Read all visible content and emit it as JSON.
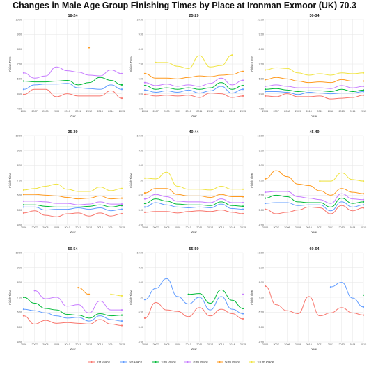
{
  "title": "Changes in Male Age Group Finishing Times by Place at Ironman Exmoor (UK) 70.3",
  "chart_data": {
    "type": "line",
    "x": [
      2006,
      2007,
      2008,
      2009,
      2010,
      2011,
      2012,
      2013,
      2014,
      2015
    ],
    "x_tick_labels": [
      "2006",
      "2007",
      "2008",
      "2009",
      "2010",
      "2011",
      "2012",
      "2013",
      "2014",
      "2015"
    ],
    "xlabel": "Year",
    "ylabel": "Finish Time",
    "ylim": [
      4,
      10
    ],
    "y_tick_labels": [
      "4:00",
      "5:00",
      "6:00",
      "7:00",
      "8:00",
      "9:00",
      "10:00"
    ],
    "grid": true,
    "legend_position": "bottom",
    "legend": [
      {
        "name": "1st Place",
        "color": "#f8766d"
      },
      {
        "name": "5th Place",
        "color": "#619cff"
      },
      {
        "name": "10th Place",
        "color": "#00ba38"
      },
      {
        "name": "20th Place",
        "color": "#c77cff"
      },
      {
        "name": "50th Place",
        "color": "#ff9a1f"
      },
      {
        "name": "100th Place",
        "color": "#f0e442"
      }
    ],
    "panels": [
      {
        "title": "18-24",
        "series": [
          {
            "name": "1st Place",
            "values": [
              4.95,
              5.3,
              5.3,
              4.8,
              5.0,
              4.85,
              4.85,
              4.85,
              5.2,
              4.7
            ]
          },
          {
            "name": "5th Place",
            "values": [
              5.3,
              5.6,
              5.65,
              5.65,
              5.7,
              5.4,
              5.35,
              5.3,
              5.6,
              5.3
            ]
          },
          {
            "name": "10th Place",
            "values": [
              5.85,
              5.8,
              5.8,
              5.85,
              5.9,
              5.6,
              5.75,
              6.1,
              5.9,
              5.6
            ]
          },
          {
            "name": "20th Place",
            "values": [
              6.4,
              6.05,
              6.2,
              6.8,
              6.55,
              6.45,
              6.25,
              6.2,
              6.6,
              6.35
            ]
          },
          {
            "name": "50th Place",
            "values": [
              null,
              null,
              null,
              null,
              null,
              null,
              8.1,
              null,
              null,
              null
            ]
          }
        ]
      },
      {
        "title": "25-29",
        "series": [
          {
            "name": "1st Place",
            "values": [
              4.95,
              4.85,
              4.9,
              4.85,
              4.9,
              4.75,
              5.05,
              5.0,
              4.75,
              4.85
            ]
          },
          {
            "name": "5th Place",
            "values": [
              5.25,
              5.1,
              5.2,
              5.1,
              5.25,
              5.05,
              5.2,
              5.5,
              5.05,
              5.3
            ]
          },
          {
            "name": "10th Place",
            "values": [
              5.55,
              5.3,
              5.4,
              5.3,
              5.4,
              5.3,
              5.4,
              5.75,
              5.3,
              5.55
            ]
          },
          {
            "name": "20th Place",
            "values": [
              5.75,
              5.55,
              5.65,
              5.5,
              5.6,
              5.5,
              5.7,
              6.05,
              5.6,
              5.9
            ]
          },
          {
            "name": "50th Place",
            "values": [
              6.35,
              6.05,
              6.05,
              6.0,
              6.1,
              6.2,
              6.15,
              6.25,
              6.3,
              6.5
            ]
          },
          {
            "name": "100th Place",
            "values": [
              null,
              7.1,
              7.1,
              6.85,
              6.7,
              7.55,
              6.8,
              6.9,
              7.6,
              null
            ]
          }
        ]
      },
      {
        "title": "30-34",
        "series": [
          {
            "name": "1st Place",
            "values": [
              4.85,
              4.8,
              5.0,
              4.8,
              4.8,
              4.85,
              4.65,
              4.7,
              4.75,
              4.9
            ]
          },
          {
            "name": "5th Place",
            "values": [
              5.15,
              5.15,
              5.1,
              4.95,
              5.1,
              5.05,
              5.0,
              5.05,
              5.05,
              5.15
            ]
          },
          {
            "name": "10th Place",
            "values": [
              5.3,
              5.35,
              5.25,
              5.15,
              5.2,
              5.2,
              5.15,
              5.3,
              5.15,
              5.25
            ]
          },
          {
            "name": "20th Place",
            "values": [
              5.5,
              5.6,
              5.5,
              5.4,
              5.4,
              5.4,
              5.35,
              5.55,
              5.4,
              5.5
            ]
          },
          {
            "name": "50th Place",
            "values": [
              5.95,
              6.1,
              6.0,
              5.85,
              5.75,
              5.8,
              5.75,
              5.95,
              5.85,
              5.85
            ]
          },
          {
            "name": "100th Place",
            "values": [
              6.6,
              6.75,
              6.7,
              6.4,
              6.25,
              6.35,
              6.25,
              6.4,
              6.35,
              6.4
            ]
          }
        ]
      },
      {
        "title": "35-39",
        "series": [
          {
            "name": "1st Place",
            "values": [
              4.8,
              4.95,
              4.65,
              4.55,
              4.75,
              4.8,
              4.6,
              4.8,
              4.6,
              4.75
            ]
          },
          {
            "name": "5th Place",
            "values": [
              5.2,
              5.2,
              5.0,
              5.05,
              5.05,
              5.15,
              5.05,
              5.15,
              4.95,
              5.05
            ]
          },
          {
            "name": "10th Place",
            "values": [
              5.35,
              5.35,
              5.25,
              5.2,
              5.2,
              5.2,
              5.25,
              5.35,
              5.2,
              5.3
            ]
          },
          {
            "name": "20th Place",
            "values": [
              5.6,
              5.6,
              5.55,
              5.45,
              5.45,
              5.35,
              5.4,
              5.55,
              5.4,
              5.4
            ]
          },
          {
            "name": "50th Place",
            "values": [
              6.05,
              6.05,
              6.0,
              5.95,
              5.85,
              5.75,
              5.8,
              5.95,
              5.75,
              5.8
            ]
          },
          {
            "name": "100th Place",
            "values": [
              6.35,
              6.45,
              6.6,
              6.75,
              6.4,
              6.25,
              6.25,
              6.55,
              6.3,
              6.45
            ]
          }
        ]
      },
      {
        "title": "40-44",
        "series": [
          {
            "name": "1st Place",
            "values": [
              4.85,
              4.9,
              4.9,
              4.8,
              4.9,
              4.95,
              4.9,
              5.0,
              4.85,
              4.75
            ]
          },
          {
            "name": "5th Place",
            "values": [
              5.2,
              5.5,
              5.35,
              5.2,
              5.15,
              5.2,
              5.15,
              5.4,
              5.1,
              5.05
            ]
          },
          {
            "name": "10th Place",
            "values": [
              5.45,
              5.75,
              5.6,
              5.4,
              5.35,
              5.35,
              5.3,
              5.55,
              5.3,
              5.25
            ]
          },
          {
            "name": "20th Place",
            "values": [
              5.75,
              6.05,
              5.9,
              5.6,
              5.55,
              5.55,
              5.5,
              5.75,
              5.5,
              5.5
            ]
          },
          {
            "name": "50th Place",
            "values": [
              6.15,
              6.45,
              6.45,
              6.05,
              5.95,
              5.95,
              5.85,
              6.05,
              5.9,
              5.9
            ]
          },
          {
            "name": "100th Place",
            "values": [
              7.15,
              7.1,
              7.55,
              6.6,
              6.4,
              6.4,
              6.35,
              6.6,
              6.4,
              6.4
            ]
          }
        ]
      },
      {
        "title": "45-49",
        "series": [
          {
            "name": "1st Place",
            "values": [
              5.05,
              4.75,
              4.85,
              5.0,
              5.2,
              5.15,
              4.75,
              5.3,
              4.95,
              5.15
            ]
          },
          {
            "name": "5th Place",
            "values": [
              5.45,
              5.5,
              5.5,
              5.3,
              5.35,
              5.35,
              4.95,
              5.55,
              5.2,
              5.35
            ]
          },
          {
            "name": "10th Place",
            "values": [
              5.8,
              6.0,
              5.9,
              5.55,
              5.5,
              5.5,
              5.2,
              5.8,
              5.45,
              5.55
            ]
          },
          {
            "name": "20th Place",
            "values": [
              6.2,
              6.25,
              6.25,
              5.9,
              5.8,
              5.7,
              5.45,
              6.1,
              5.75,
              5.7
            ]
          },
          {
            "name": "50th Place",
            "values": [
              7.1,
              7.65,
              7.25,
              6.75,
              6.65,
              6.3,
              6.0,
              6.45,
              6.2,
              6.1
            ]
          },
          {
            "name": "100th Place",
            "values": [
              null,
              null,
              null,
              null,
              null,
              6.95,
              6.95,
              7.5,
              7.05,
              6.95
            ]
          }
        ]
      },
      {
        "title": "50-54",
        "series": [
          {
            "name": "1st Place",
            "values": [
              5.75,
              5.2,
              5.45,
              5.25,
              5.3,
              5.25,
              5.2,
              5.5,
              5.2,
              5.1
            ]
          },
          {
            "name": "5th Place",
            "values": [
              6.2,
              6.1,
              5.95,
              5.75,
              5.6,
              5.65,
              5.4,
              5.75,
              5.5,
              5.4
            ]
          },
          {
            "name": "10th Place",
            "values": [
              7.0,
              6.6,
              6.25,
              6.15,
              5.85,
              5.8,
              5.6,
              5.9,
              5.75,
              5.8
            ]
          },
          {
            "name": "20th Place",
            "values": [
              null,
              7.45,
              6.9,
              7.0,
              6.4,
              6.5,
              5.95,
              6.75,
              6.15,
              6.15
            ]
          },
          {
            "name": "50th Place",
            "values": [
              null,
              null,
              null,
              null,
              null,
              7.65,
              7.2,
              null,
              null,
              null
            ]
          },
          {
            "name": "100th Place",
            "values": [
              null,
              null,
              null,
              null,
              null,
              null,
              null,
              null,
              7.2,
              7.1
            ]
          }
        ]
      },
      {
        "title": "55-59",
        "series": [
          {
            "name": "1st Place",
            "values": [
              5.6,
              6.65,
              6.15,
              6.05,
              5.7,
              6.3,
              5.75,
              6.2,
              5.9,
              5.55
            ]
          },
          {
            "name": "5th Place",
            "values": [
              6.85,
              7.6,
              8.25,
              7.05,
              6.55,
              7.0,
              6.15,
              7.05,
              6.2,
              5.9
            ]
          },
          {
            "name": "10th Place",
            "values": [
              null,
              null,
              null,
              null,
              7.2,
              7.25,
              6.6,
              7.5,
              6.8,
              6.25
            ]
          },
          {
            "name": "20th Place",
            "values": [
              null,
              null,
              null,
              null,
              null,
              null,
              null,
              null,
              null,
              7.2
            ]
          }
        ]
      },
      {
        "title": "60-64",
        "series": [
          {
            "name": "1st Place",
            "values": [
              7.75,
              6.5,
              6.1,
              5.9,
              7.05,
              5.75,
              5.95,
              6.3,
              5.95,
              5.8
            ]
          },
          {
            "name": "5th Place",
            "values": [
              null,
              null,
              null,
              null,
              null,
              null,
              7.7,
              8.0,
              6.95,
              6.35
            ]
          },
          {
            "name": "10th Place",
            "values": [
              null,
              null,
              null,
              null,
              null,
              null,
              null,
              null,
              null,
              7.15
            ]
          }
        ]
      }
    ]
  }
}
